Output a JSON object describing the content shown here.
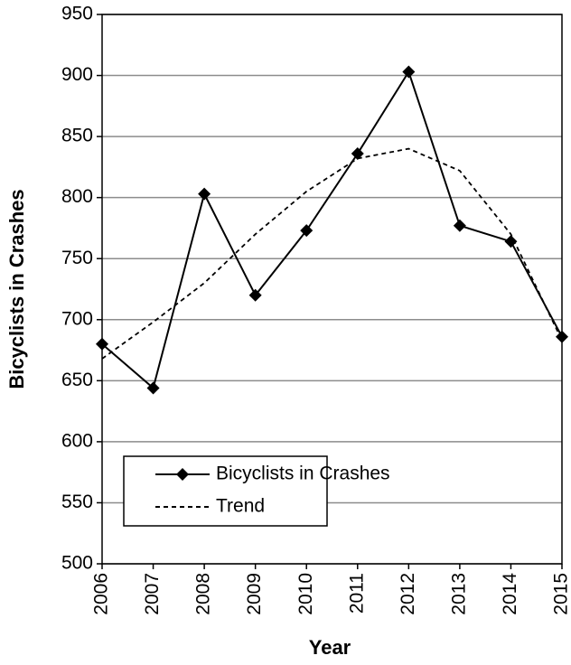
{
  "chart_data": {
    "type": "line",
    "x_label": "Year",
    "y_label": "Bicyclists in Crashes",
    "categories": [
      "2006",
      "2007",
      "2008",
      "2009",
      "2010",
      "2011",
      "2012",
      "2013",
      "2014",
      "2015"
    ],
    "series": [
      {
        "name": "Bicyclists in Crashes",
        "color": "#000000",
        "dashed": false,
        "marker": "diamond",
        "values": [
          680,
          644,
          803,
          720,
          773,
          836,
          903,
          777,
          764,
          686
        ]
      },
      {
        "name": "Trend",
        "color": "#000000",
        "dashed": true,
        "marker": "none",
        "values": [
          668,
          698,
          730,
          770,
          805,
          832,
          840,
          822,
          770,
          683
        ]
      }
    ],
    "ylim": [
      500,
      950
    ],
    "yticks": [
      500,
      550,
      600,
      650,
      700,
      750,
      800,
      850,
      900,
      950
    ],
    "grid": true,
    "legend": "lower left"
  }
}
